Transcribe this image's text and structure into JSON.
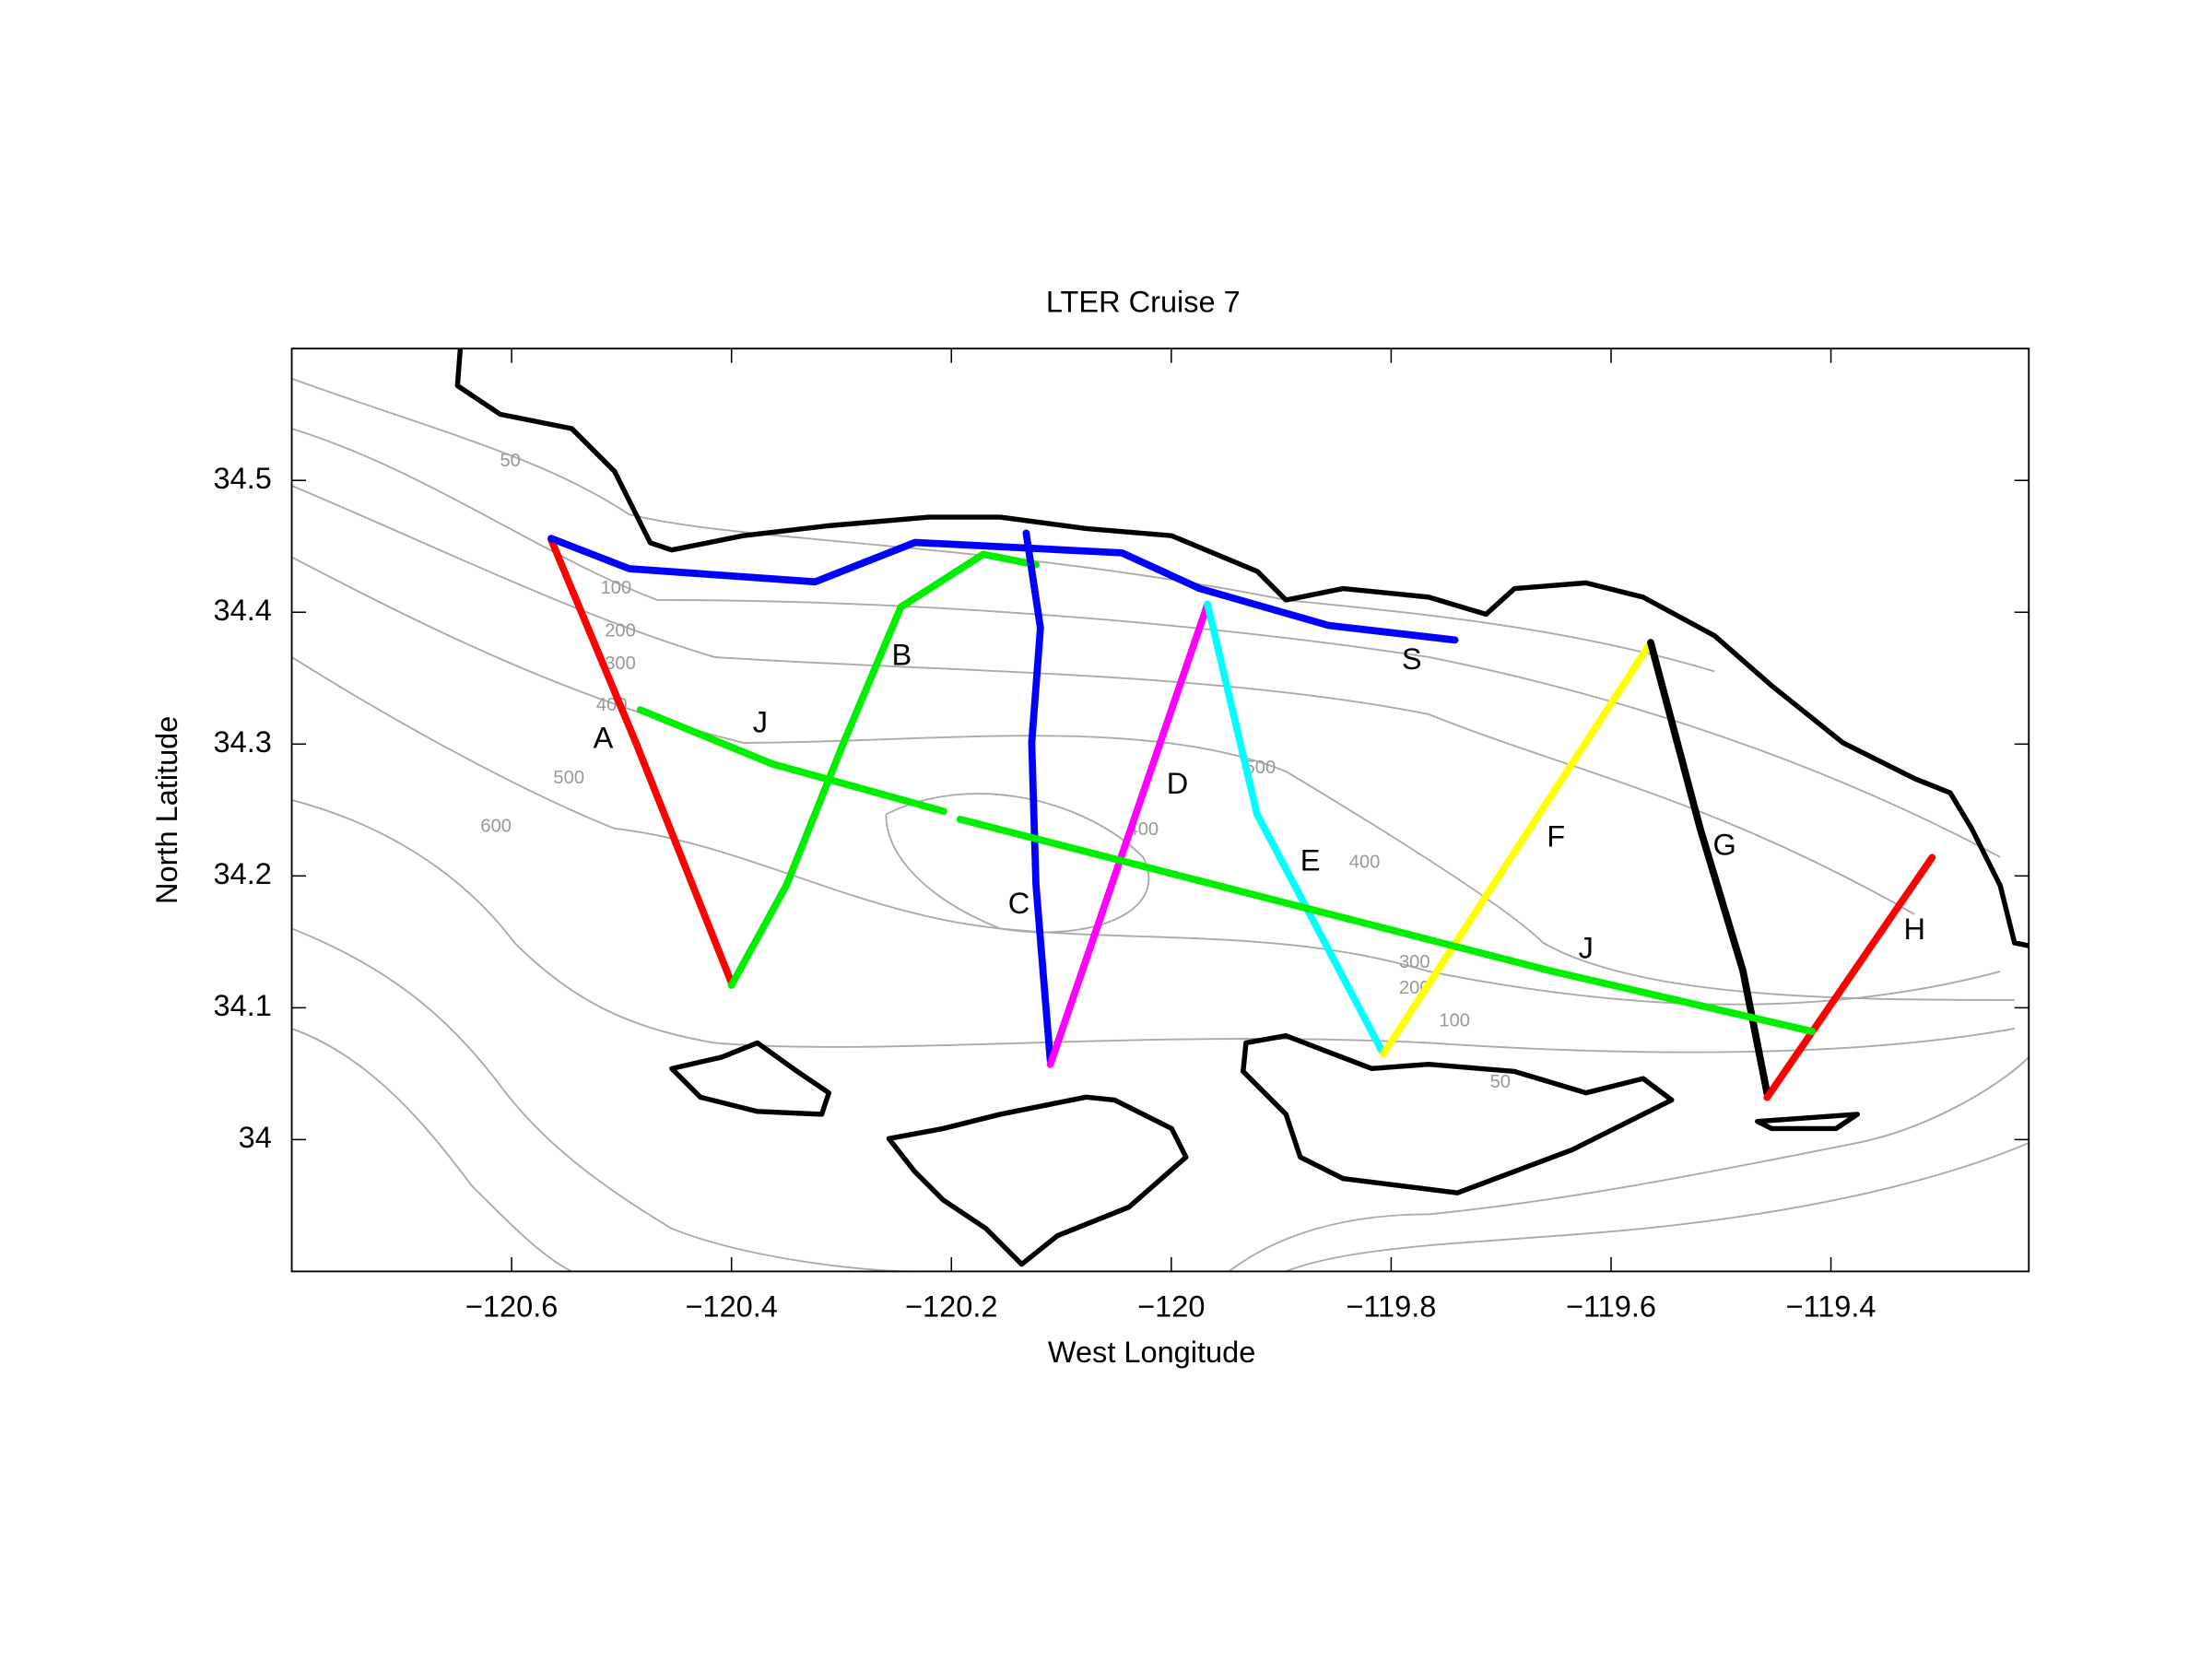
{
  "chart_data": {
    "type": "line",
    "title": "LTER Cruise 7",
    "x_label": "West Longitude",
    "y_label": "North Latitude",
    "xlim": [
      -120.8,
      -119.22
    ],
    "ylim": [
      33.9,
      34.6
    ],
    "xticks": [
      {
        "value": -120.6,
        "label": "−120.6"
      },
      {
        "value": -120.4,
        "label": "−120.4"
      },
      {
        "value": -120.2,
        "label": "−120.2"
      },
      {
        "value": -120,
        "label": "−120"
      },
      {
        "value": -119.8,
        "label": "−119.8"
      },
      {
        "value": -119.6,
        "label": "−119.6"
      },
      {
        "value": -119.4,
        "label": "−119.4"
      }
    ],
    "yticks": [
      34,
      34.1,
      34.2,
      34.3,
      34.4,
      34.5
    ],
    "contour_labels": [
      "50",
      "100",
      "200",
      "300",
      "400",
      "500",
      "600",
      "500",
      "400",
      "400",
      "300",
      "200",
      "100",
      "50"
    ],
    "series": [
      {
        "name": "A",
        "color": "#ff0000",
        "x": [
          -120.564,
          -120.487,
          -120.4
        ],
        "y": [
          34.455,
          34.301,
          34.119
        ]
      },
      {
        "name": "B",
        "color": "#00ee00",
        "x": [
          -120.4,
          -120.35,
          -120.298,
          -120.246,
          -120.171,
          -120.123
        ],
        "y": [
          34.117,
          34.193,
          34.301,
          34.404,
          34.444,
          34.436
        ]
      },
      {
        "name": "C",
        "color": "#0000ff",
        "x": [
          -120.132,
          -120.119,
          -120.127,
          -120.123,
          -120.11
        ],
        "y": [
          34.46,
          34.388,
          34.301,
          34.193,
          34.06
        ]
      },
      {
        "name": "D",
        "color": "#ff00ff",
        "x": [
          -120.11,
          -119.967
        ],
        "y": [
          34.057,
          34.406
        ]
      },
      {
        "name": "E",
        "color": "#00ffff",
        "x": [
          -119.967,
          -119.922,
          -119.807
        ],
        "y": [
          34.406,
          34.247,
          34.065
        ]
      },
      {
        "name": "F",
        "color": "#ffff00",
        "x": [
          -119.807,
          -119.564
        ],
        "y": [
          34.065,
          34.377
        ]
      },
      {
        "name": "G",
        "color": "#000000",
        "x": [
          -119.564,
          -119.519,
          -119.48,
          -119.458
        ],
        "y": [
          34.377,
          34.236,
          34.128,
          34.035
        ]
      },
      {
        "name": "H",
        "color": "#ff0000",
        "x": [
          -119.458,
          -119.308
        ],
        "y": [
          34.032,
          34.214
        ]
      },
      {
        "name": "J",
        "color": "#00ee00",
        "x": [
          -120.483,
          -120.363,
          -120.207,
          null,
          -120.192,
          -119.655,
          -119.417
        ],
        "y": [
          34.326,
          34.285,
          34.249,
          null,
          34.243,
          34.128,
          34.082
        ]
      },
      {
        "name": "S",
        "color": "#0000ff",
        "x": [
          -120.564,
          -120.493,
          -120.324,
          -120.233,
          -120.045,
          -119.974,
          -119.857,
          -119.742
        ],
        "y": [
          34.456,
          34.433,
          34.423,
          34.453,
          34.445,
          34.418,
          34.39,
          34.379
        ]
      }
    ]
  }
}
